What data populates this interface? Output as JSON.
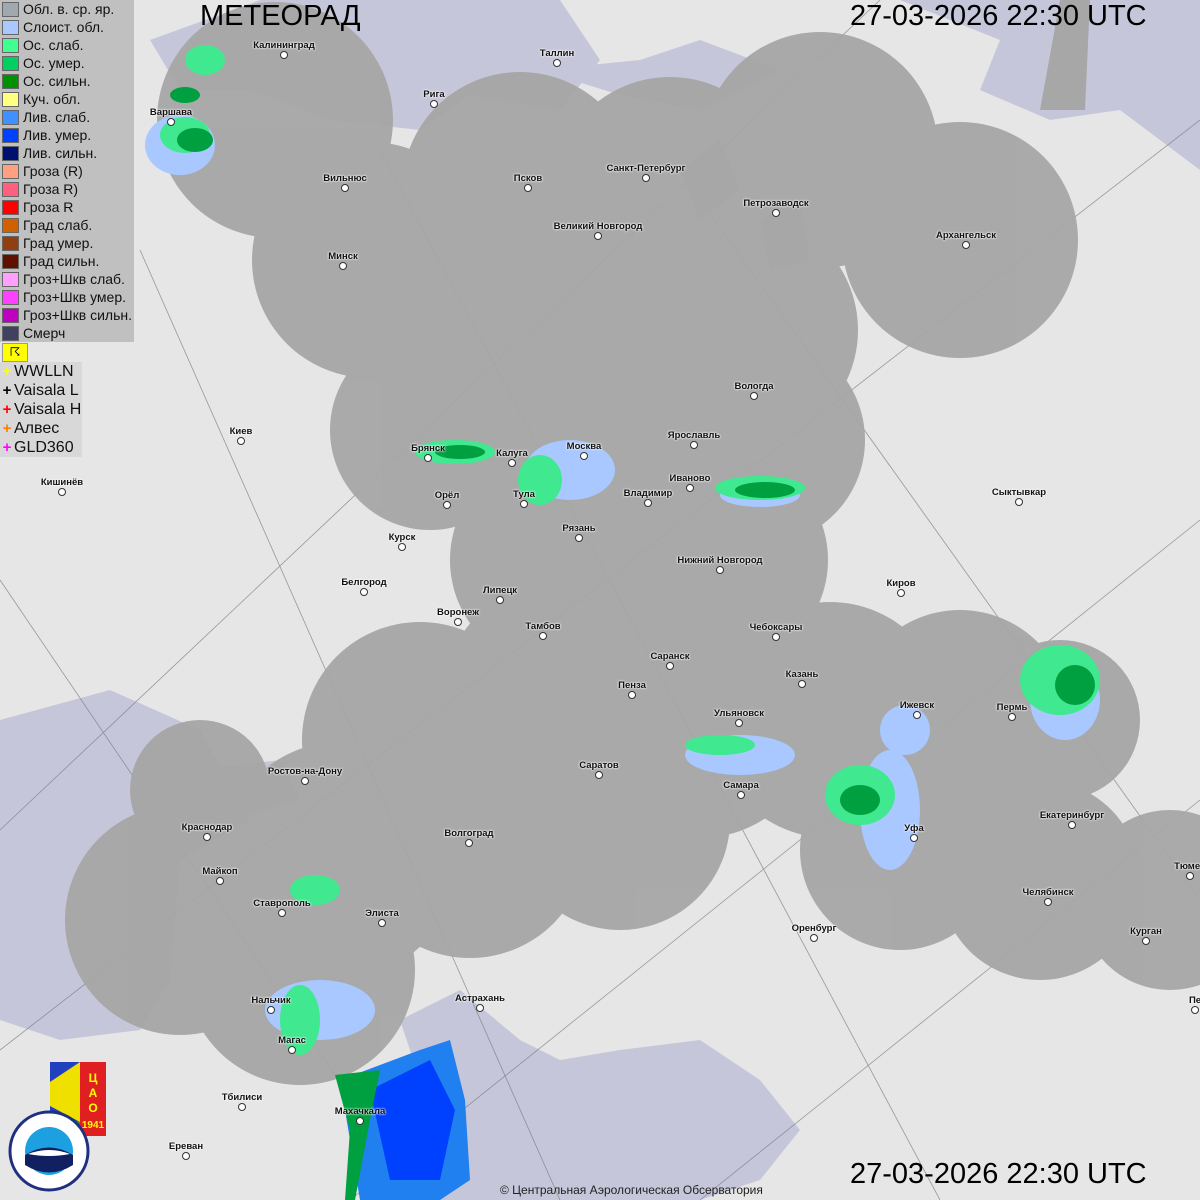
{
  "header": {
    "title": "МЕТЕОРАД",
    "timestamp_top": "27-03-2026  22:30 UTC",
    "timestamp_bottom": "27-03-2026  22:30 UTC"
  },
  "legend": [
    {
      "label": "Обл. в. ср. яр.",
      "color": "#a0a8b0"
    },
    {
      "label": "Слоист. обл.",
      "color": "#a8c8ff"
    },
    {
      "label": "Ос. слаб.",
      "color": "#40ff90"
    },
    {
      "label": "Ос. умер.",
      "color": "#00d060"
    },
    {
      "label": "Ос. сильн.",
      "color": "#009000"
    },
    {
      "label": "Куч. обл.",
      "color": "#ffff80"
    },
    {
      "label": "Лив. слаб.",
      "color": "#4090ff"
    },
    {
      "label": "Лив. умер.",
      "color": "#0040ff"
    },
    {
      "label": "Лив. сильн.",
      "color": "#001070"
    },
    {
      "label": "Гроза (R)",
      "color": "#ffa080"
    },
    {
      "label": "Гроза R)",
      "color": "#ff6080"
    },
    {
      "label": "Гроза R",
      "color": "#ff0000"
    },
    {
      "label": "Град слаб.",
      "color": "#d06000"
    },
    {
      "label": "Град умер.",
      "color": "#904010"
    },
    {
      "label": "Град сильн.",
      "color": "#601000"
    },
    {
      "label": "Гроз+Шкв слаб.",
      "color": "#ffa0ff"
    },
    {
      "label": "Гроз+Шкв умер.",
      "color": "#ff40ff"
    },
    {
      "label": "Гроз+Шкв сильн.",
      "color": "#c000c0"
    },
    {
      "label": "Смерч",
      "color": "#404060"
    }
  ],
  "lightning": [
    {
      "label": "WWLLN",
      "color": "#ffff00"
    },
    {
      "label": "Vaisala L",
      "color": "#000000"
    },
    {
      "label": "Vaisala H",
      "color": "#ff0000"
    },
    {
      "label": "Алвес",
      "color": "#ff8000"
    },
    {
      "label": "GLD360",
      "color": "#ff00ff"
    }
  ],
  "cities": [
    "Калининград",
    "Таллин",
    "Рига",
    "Варшава",
    "Вильнюс",
    "Псков",
    "Санкт-Петербург",
    "Петрозаводск",
    "Архангельск",
    "Великий Новгород",
    "Минск",
    "Вологда",
    "Киев",
    "Ярославль",
    "Брянск",
    "Калуга",
    "Москва",
    "Иваново",
    "Владимир",
    "Тула",
    "Орёл",
    "Кишинёв",
    "Сыктывкар",
    "Рязань",
    "Курск",
    "Нижний Новгород",
    "Белгород",
    "Киров",
    "Липецк",
    "Воронеж",
    "Тамбов",
    "Чебоксары",
    "Саранск",
    "Казань",
    "Пенза",
    "Ижевск",
    "Пермь",
    "Ульяновск",
    "Саратов",
    "Ростов-на-Дону",
    "Самара",
    "Екатеринбург",
    "Уфа",
    "Краснодар",
    "Волгоград",
    "Майкоп",
    "Тюмен",
    "Челябинск",
    "Ставрополь",
    "Элиста",
    "Оренбург",
    "Курган",
    "Астрахань",
    "Нальчик",
    "Магас",
    "Тбилиси",
    "Махачкала",
    "Ереван",
    "Пе"
  ],
  "logos": {
    "cao": "ЦАО 1941",
    "roshydromet": "РОСГИДРОМЕТ ROSHYDROMET"
  },
  "copyright": "© Центральная Аэрологическая Обсерватория"
}
